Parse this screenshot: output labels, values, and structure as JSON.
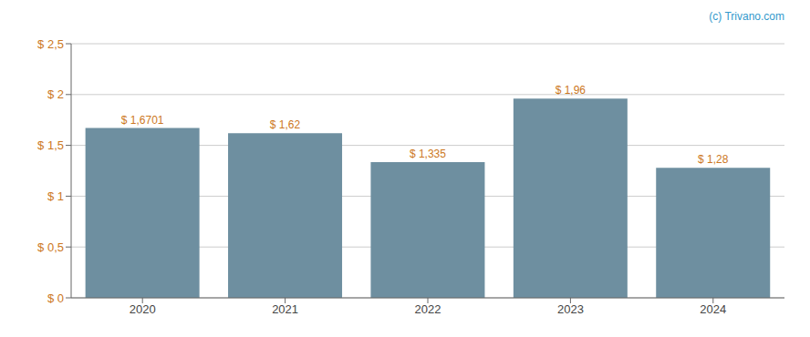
{
  "chart_data": {
    "type": "bar",
    "categories": [
      "2020",
      "2021",
      "2022",
      "2023",
      "2024"
    ],
    "values": [
      1.6701,
      1.62,
      1.335,
      1.96,
      1.28
    ],
    "value_labels": [
      "$ 1,6701",
      "$ 1,62",
      "$ 1,335",
      "$ 1,96",
      "$ 1,28"
    ],
    "data_labels": true,
    "color": "#6e8fa0",
    "ylim": [
      0,
      2.5
    ],
    "yticks": [
      {
        "value": 0,
        "label": "$ 0"
      },
      {
        "value": 0.5,
        "label": "$ 0,5"
      },
      {
        "value": 1.0,
        "label": "$ 1"
      },
      {
        "value": 1.5,
        "label": "$ 1,5"
      },
      {
        "value": 2.0,
        "label": "$ 2"
      },
      {
        "value": 2.5,
        "label": "$ 2,5"
      }
    ],
    "grid": true,
    "annotation": "(c) Trivano.com"
  }
}
